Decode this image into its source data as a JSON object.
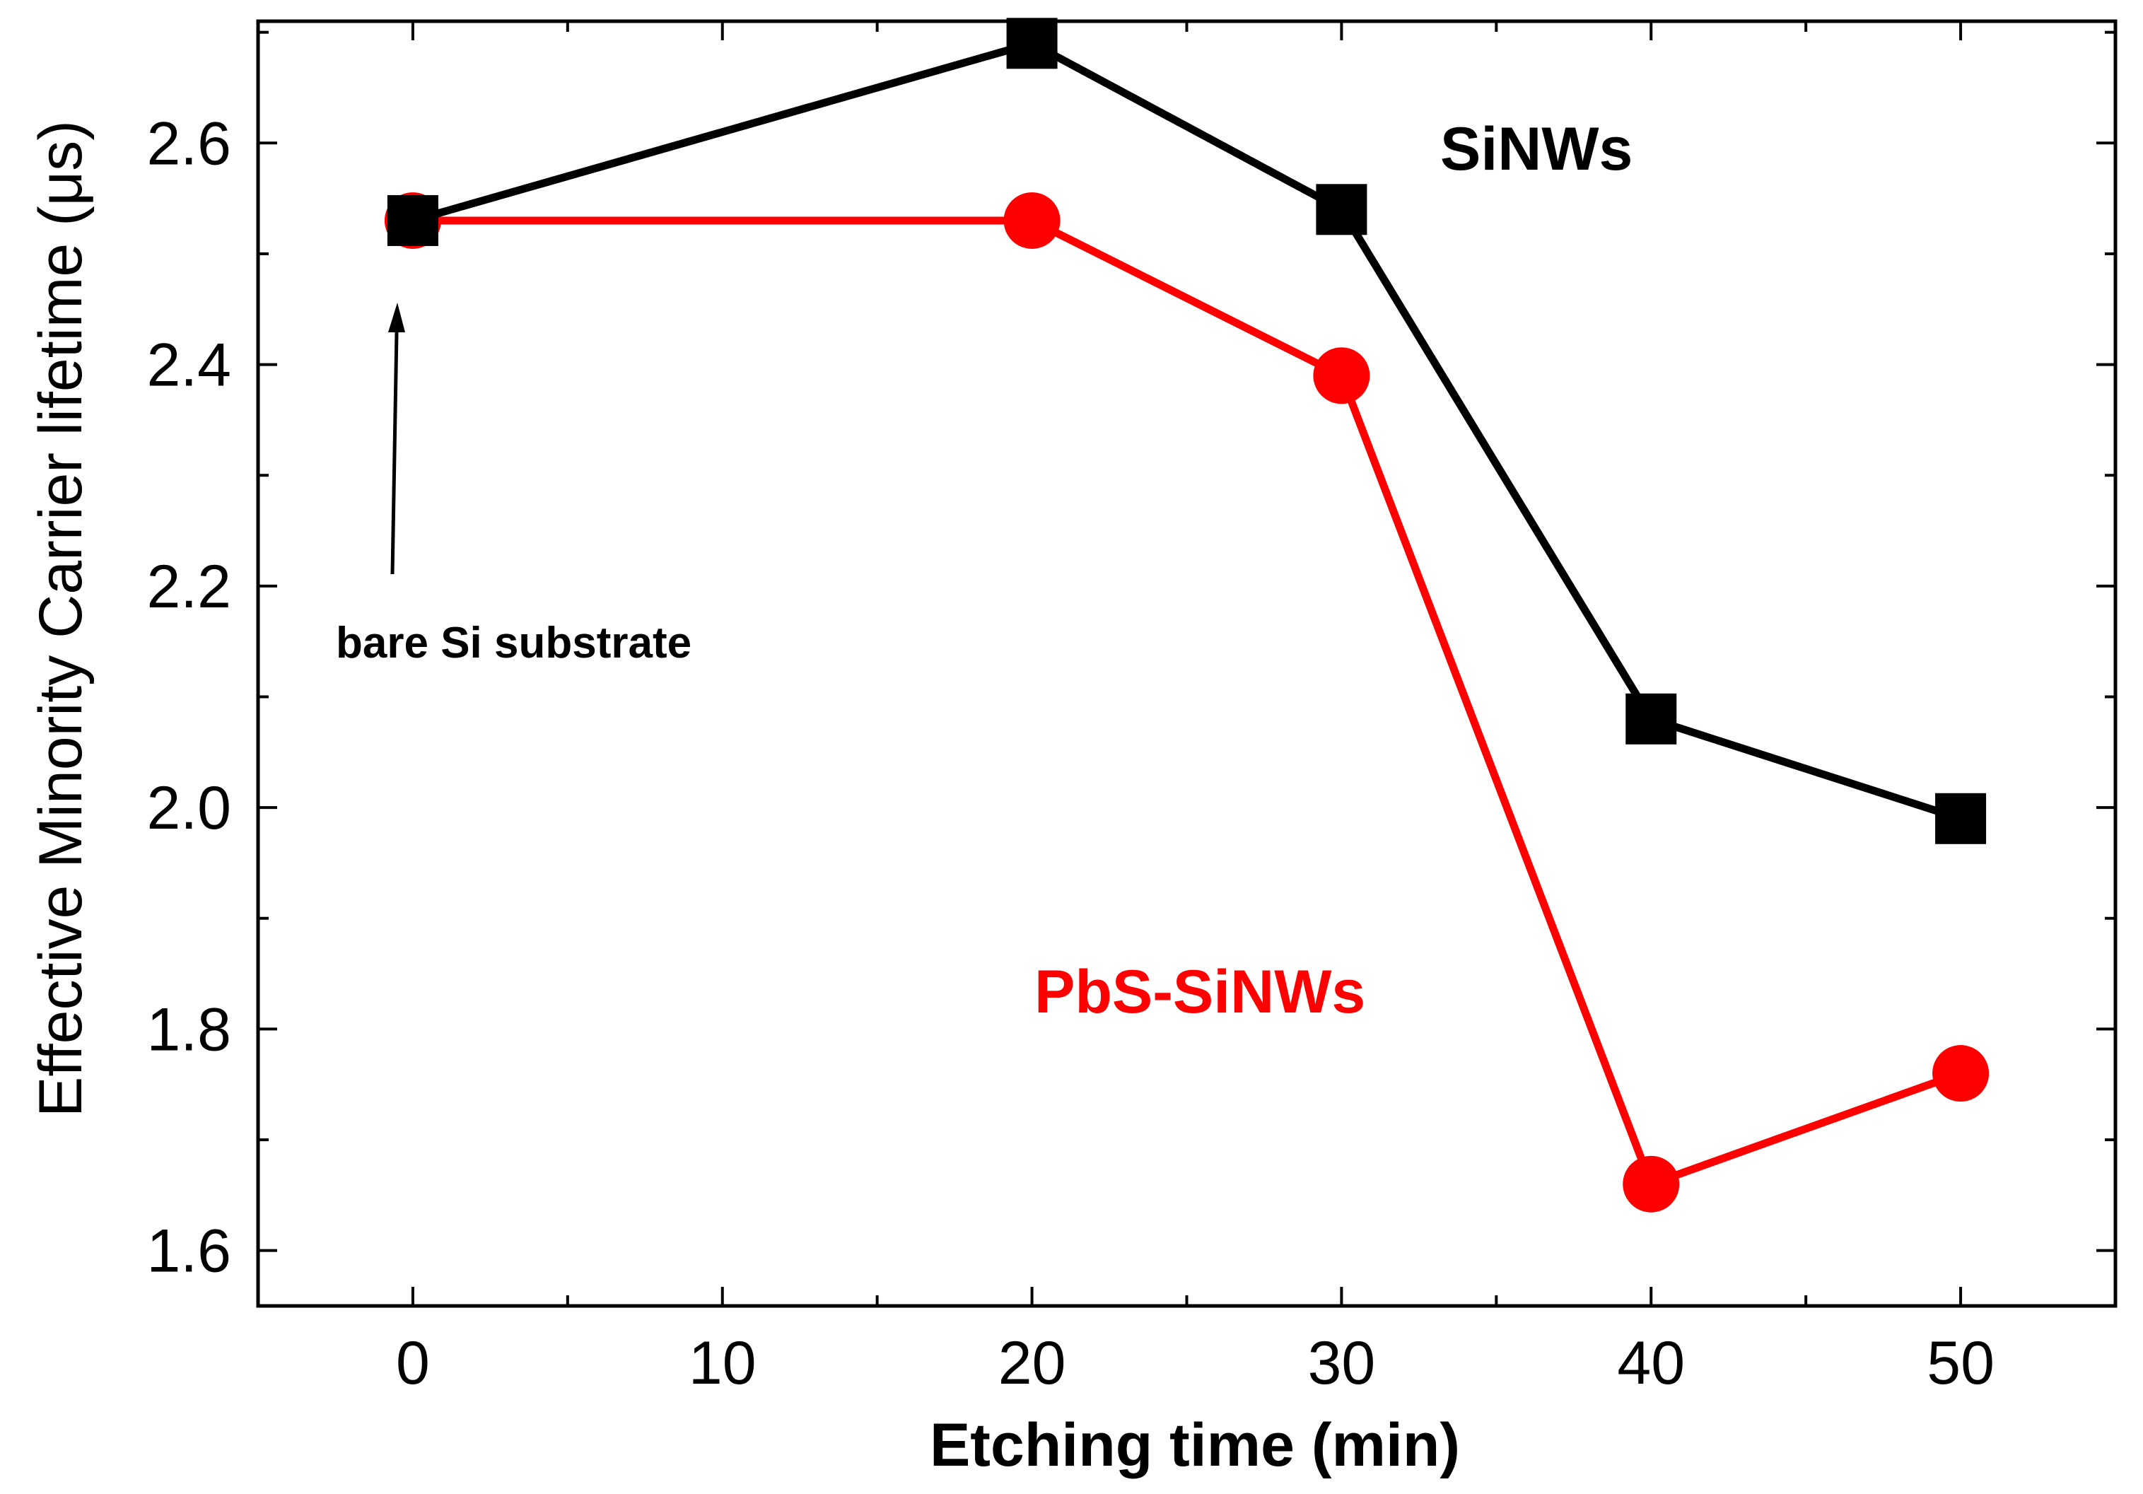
{
  "chart_data": {
    "type": "line",
    "title": "",
    "xlabel": "Etching time (min)",
    "ylabel": "Effective Minority Carrier lifetime (μs)",
    "xlim": [
      -5,
      55
    ],
    "ylim": [
      1.55,
      2.71
    ],
    "xticks": [
      0,
      10,
      20,
      30,
      40,
      50
    ],
    "xtick_labels": [
      "0",
      "10",
      "20",
      "30",
      "40",
      "50"
    ],
    "xminor": [
      5,
      15,
      25,
      35,
      45
    ],
    "yticks": [
      1.6,
      1.8,
      2.0,
      2.2,
      2.4,
      2.6
    ],
    "ytick_labels": [
      "1.6",
      "1.8",
      "2.0",
      "2.2",
      "2.4",
      "2.6"
    ],
    "yminor": [
      1.7,
      1.9,
      2.1,
      2.3,
      2.5,
      2.7
    ],
    "grid": false,
    "series": [
      {
        "name": "SiNWs",
        "color": "#000000",
        "marker": "square",
        "x": [
          0,
          20,
          30,
          40,
          50
        ],
        "y": [
          2.53,
          2.69,
          2.54,
          2.08,
          1.99
        ]
      },
      {
        "name": "PbS-SiNWs",
        "color": "#ff0000",
        "marker": "circle",
        "x": [
          0,
          20,
          30,
          40,
          50
        ],
        "y": [
          2.53,
          2.53,
          2.39,
          1.66,
          1.76
        ]
      }
    ],
    "annotations": [
      {
        "text": "bare Si substrate",
        "x": 0,
        "y": 2.53
      }
    ]
  }
}
